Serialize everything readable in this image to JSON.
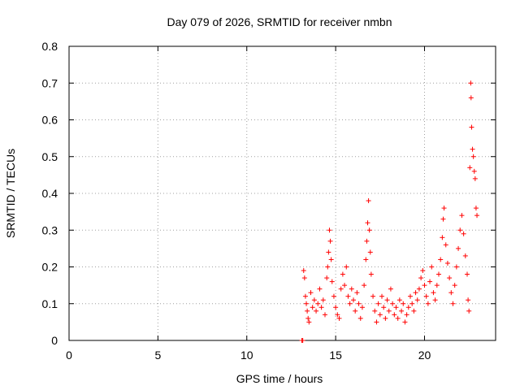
{
  "chart_data": {
    "type": "scatter",
    "title": "Day 079 of 2026, SRMTID for receiver nmbn",
    "xlabel": "GPS time / hours",
    "ylabel": "SRMTID / TECUs",
    "xlim": [
      0,
      24
    ],
    "ylim": [
      0,
      0.8
    ],
    "xticks": [
      "0",
      "5",
      "10",
      "15",
      "20"
    ],
    "yticks": [
      "0",
      "0.1",
      "0.2",
      "0.3",
      "0.4",
      "0.5",
      "0.6",
      "0.7",
      "0.8"
    ],
    "grid": true,
    "marker": "+",
    "color": "#ff0000",
    "series": [
      {
        "name": "SRMTID",
        "points": [
          [
            13.1,
            0.0
          ],
          [
            13.15,
            0.0
          ],
          [
            13.2,
            0.19
          ],
          [
            13.25,
            0.17
          ],
          [
            13.3,
            0.12
          ],
          [
            13.35,
            0.1
          ],
          [
            13.4,
            0.08
          ],
          [
            13.45,
            0.06
          ],
          [
            13.5,
            0.05
          ],
          [
            13.6,
            0.13
          ],
          [
            13.7,
            0.09
          ],
          [
            13.8,
            0.11
          ],
          [
            13.9,
            0.08
          ],
          [
            14.0,
            0.1
          ],
          [
            14.1,
            0.14
          ],
          [
            14.2,
            0.09
          ],
          [
            14.3,
            0.11
          ],
          [
            14.4,
            0.07
          ],
          [
            14.5,
            0.17
          ],
          [
            14.55,
            0.2
          ],
          [
            14.6,
            0.24
          ],
          [
            14.65,
            0.3
          ],
          [
            14.7,
            0.27
          ],
          [
            14.75,
            0.22
          ],
          [
            14.8,
            0.16
          ],
          [
            14.9,
            0.12
          ],
          [
            15.0,
            0.09
          ],
          [
            15.1,
            0.07
          ],
          [
            15.2,
            0.06
          ],
          [
            15.3,
            0.14
          ],
          [
            15.4,
            0.18
          ],
          [
            15.5,
            0.15
          ],
          [
            15.6,
            0.2
          ],
          [
            15.7,
            0.12
          ],
          [
            15.8,
            0.1
          ],
          [
            15.9,
            0.14
          ],
          [
            16.0,
            0.11
          ],
          [
            16.1,
            0.08
          ],
          [
            16.2,
            0.13
          ],
          [
            16.3,
            0.1
          ],
          [
            16.4,
            0.06
          ],
          [
            16.5,
            0.09
          ],
          [
            16.6,
            0.15
          ],
          [
            16.7,
            0.22
          ],
          [
            16.75,
            0.27
          ],
          [
            16.8,
            0.32
          ],
          [
            16.85,
            0.38
          ],
          [
            16.9,
            0.3
          ],
          [
            16.95,
            0.24
          ],
          [
            17.0,
            0.18
          ],
          [
            17.1,
            0.12
          ],
          [
            17.2,
            0.08
          ],
          [
            17.3,
            0.05
          ],
          [
            17.4,
            0.1
          ],
          [
            17.5,
            0.07
          ],
          [
            17.6,
            0.12
          ],
          [
            17.7,
            0.09
          ],
          [
            17.8,
            0.06
          ],
          [
            17.9,
            0.11
          ],
          [
            18.0,
            0.08
          ],
          [
            18.1,
            0.14
          ],
          [
            18.2,
            0.1
          ],
          [
            18.3,
            0.07
          ],
          [
            18.4,
            0.09
          ],
          [
            18.5,
            0.06
          ],
          [
            18.6,
            0.11
          ],
          [
            18.7,
            0.08
          ],
          [
            18.8,
            0.1
          ],
          [
            18.9,
            0.05
          ],
          [
            19.0,
            0.07
          ],
          [
            19.1,
            0.09
          ],
          [
            19.2,
            0.12
          ],
          [
            19.3,
            0.1
          ],
          [
            19.4,
            0.08
          ],
          [
            19.5,
            0.13
          ],
          [
            19.6,
            0.11
          ],
          [
            19.7,
            0.14
          ],
          [
            19.8,
            0.17
          ],
          [
            19.9,
            0.19
          ],
          [
            20.0,
            0.15
          ],
          [
            20.1,
            0.12
          ],
          [
            20.2,
            0.1
          ],
          [
            20.3,
            0.16
          ],
          [
            20.4,
            0.2
          ],
          [
            20.5,
            0.13
          ],
          [
            20.6,
            0.11
          ],
          [
            20.7,
            0.15
          ],
          [
            20.8,
            0.18
          ],
          [
            20.9,
            0.22
          ],
          [
            21.0,
            0.28
          ],
          [
            21.05,
            0.33
          ],
          [
            21.1,
            0.36
          ],
          [
            21.2,
            0.26
          ],
          [
            21.3,
            0.21
          ],
          [
            21.4,
            0.17
          ],
          [
            21.5,
            0.13
          ],
          [
            21.6,
            0.1
          ],
          [
            21.7,
            0.15
          ],
          [
            21.8,
            0.2
          ],
          [
            21.9,
            0.25
          ],
          [
            22.0,
            0.3
          ],
          [
            22.1,
            0.34
          ],
          [
            22.2,
            0.29
          ],
          [
            22.3,
            0.23
          ],
          [
            22.4,
            0.18
          ],
          [
            22.45,
            0.11
          ],
          [
            22.5,
            0.08
          ],
          [
            22.55,
            0.47
          ],
          [
            22.6,
            0.7
          ],
          [
            22.62,
            0.66
          ],
          [
            22.65,
            0.58
          ],
          [
            22.7,
            0.52
          ],
          [
            22.75,
            0.5
          ],
          [
            22.8,
            0.46
          ],
          [
            22.85,
            0.44
          ],
          [
            22.9,
            0.36
          ],
          [
            22.95,
            0.34
          ]
        ]
      }
    ]
  }
}
